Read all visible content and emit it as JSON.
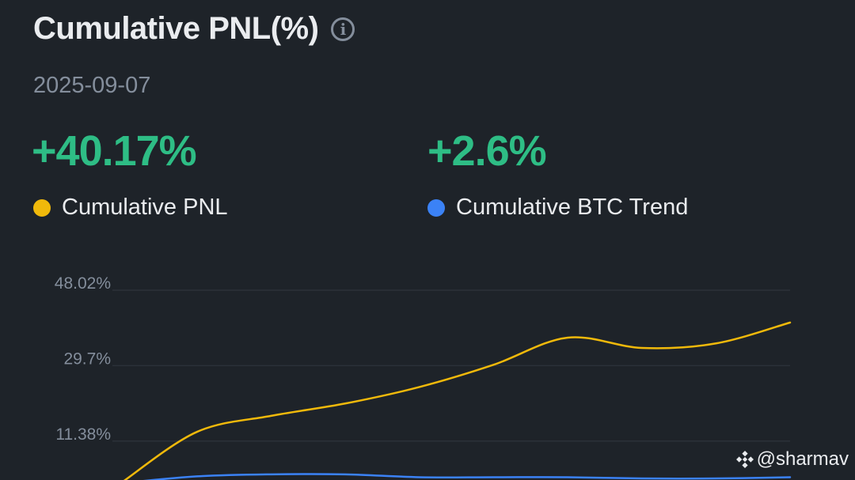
{
  "header": {
    "title": "Cumulative PNL(%)",
    "info_icon": "info-icon",
    "date": "2025-09-07"
  },
  "stats": {
    "pnl_value": "+40.17%",
    "btc_value": "+2.6%",
    "value_color": "#2ebd85"
  },
  "legend": {
    "pnl_label": "Cumulative PNL",
    "btc_label": "Cumulative BTC Trend"
  },
  "colors": {
    "pnl": "#f0b90b",
    "btc": "#3b82f6",
    "grid": "#2b3139",
    "background": "#1e2329"
  },
  "watermark": {
    "icon": "binance-logo-icon",
    "text": "@sharmav"
  },
  "chart_data": {
    "type": "line",
    "y_ticks": [
      "48.02%",
      "29.7%",
      "11.38%"
    ],
    "y_tick_values": [
      48.02,
      29.7,
      11.38
    ],
    "ylim": [
      0,
      48.02
    ],
    "grid": true,
    "series": [
      {
        "name": "Cumulative PNL",
        "values": [
          1.5,
          13.6,
          17.5,
          20.5,
          24.5,
          29.9,
          36.5,
          34.0,
          35.1,
          40.17
        ]
      },
      {
        "name": "Cumulative BTC Trend",
        "values": [
          1.2,
          2.8,
          3.3,
          3.3,
          2.6,
          2.6,
          2.6,
          2.3,
          2.3,
          2.6
        ]
      }
    ]
  }
}
